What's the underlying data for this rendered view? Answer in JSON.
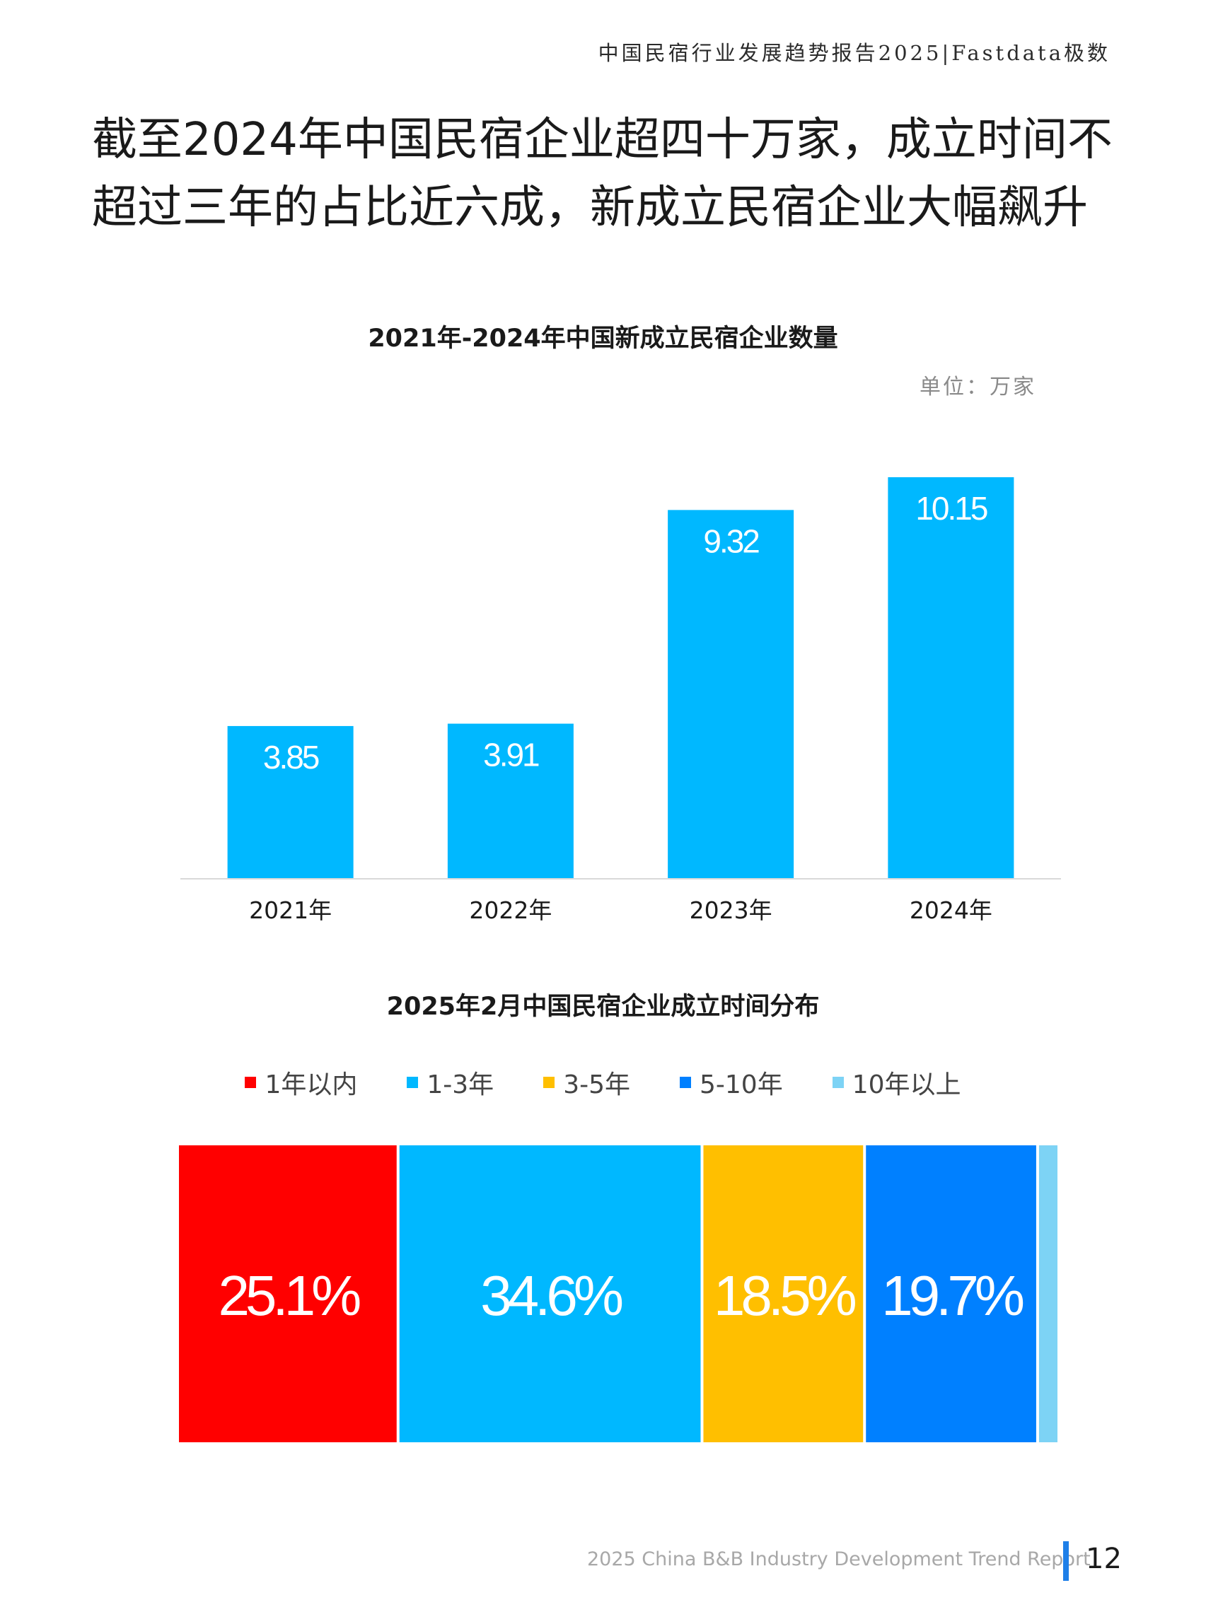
{
  "header": {
    "report_title": "中国民宿行业发展趋势报告2025|Fastdata极数"
  },
  "headline": {
    "line1": "截至2024年中国民宿企业超四十万家，成立时间不",
    "line2": "超过三年的占比近六成，新成立民宿企业大幅飙升"
  },
  "colors": {
    "bar": "#00b8ff",
    "baseline": "#d9d9d9",
    "segments": [
      "#ff0000",
      "#00b8ff",
      "#ffbf00",
      "#0080ff",
      "#7dd3f5"
    ]
  },
  "chart_data": [
    {
      "type": "bar",
      "title": "2021年-2024年中国新成立民宿企业数量",
      "unit": "单位：万家",
      "categories": [
        "2021年",
        "2022年",
        "2023年",
        "2024年"
      ],
      "values": [
        3.85,
        3.91,
        9.32,
        10.15
      ],
      "data_labels": [
        "3.85",
        "3.91",
        "9.32",
        "10.15"
      ],
      "ylim": [
        0,
        10.15
      ],
      "grid": false,
      "legend": "none"
    },
    {
      "type": "bar",
      "orientation": "stacked-horizontal",
      "title": "2025年2月中国民宿企业成立时间分布",
      "series": [
        {
          "name": "1年以内",
          "values": [
            25.1
          ],
          "label": "25.1%"
        },
        {
          "name": "1-3年",
          "values": [
            34.6
          ],
          "label": "34.6%"
        },
        {
          "name": "3-5年",
          "values": [
            18.5
          ],
          "label": "18.5%"
        },
        {
          "name": "5-10年",
          "values": [
            19.7
          ],
          "label": "19.7%"
        },
        {
          "name": "10年以上",
          "values": [
            2.1
          ],
          "label": ""
        }
      ],
      "legend": "top"
    }
  ],
  "footer": {
    "text": "2025 China B&B Industry Development Trend Report",
    "page": "12"
  }
}
